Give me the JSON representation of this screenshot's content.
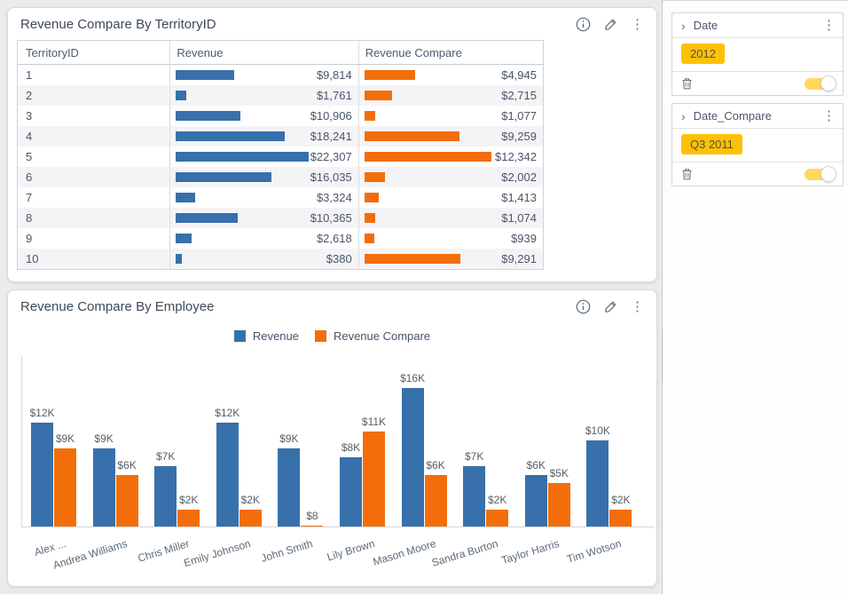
{
  "colors": {
    "revenue_blue": "#3770ab",
    "compare_orange": "#f36e0a",
    "chip_gold": "#ffc107",
    "toggle_on": "#ffd95c"
  },
  "icons": {
    "info": "info-circle",
    "edit": "pencil",
    "more": "vertical-ellipsis",
    "expander": "chevron-right",
    "delete": "trash-outline",
    "splitter": "chevron-right",
    "more_glyph": "⋮",
    "expander_glyph": "›",
    "splitter_glyph": "›"
  },
  "sidebar": {
    "filters": [
      {
        "title": "Date",
        "chip": "2012",
        "enabled": true
      },
      {
        "title": "Date_Compare",
        "chip": "Q3 2011",
        "enabled": true
      }
    ]
  },
  "chart_data": [
    {
      "type": "table",
      "title": "Revenue Compare By TerritoryID",
      "columns": [
        "TerritoryID",
        "Revenue",
        "Revenue Compare"
      ],
      "rows": [
        {
          "id": "1",
          "revenue": 9814,
          "revenue_label": "$9,814",
          "compare": 4945,
          "compare_label": "$4,945"
        },
        {
          "id": "2",
          "revenue": 1761,
          "revenue_label": "$1,761",
          "compare": 2715,
          "compare_label": "$2,715"
        },
        {
          "id": "3",
          "revenue": 10906,
          "revenue_label": "$10,906",
          "compare": 1077,
          "compare_label": "$1,077"
        },
        {
          "id": "4",
          "revenue": 18241,
          "revenue_label": "$18,241",
          "compare": 9259,
          "compare_label": "$9,259"
        },
        {
          "id": "5",
          "revenue": 22307,
          "revenue_label": "$22,307",
          "compare": 12342,
          "compare_label": "$12,342"
        },
        {
          "id": "6",
          "revenue": 16035,
          "revenue_label": "$16,035",
          "compare": 2002,
          "compare_label": "$2,002"
        },
        {
          "id": "7",
          "revenue": 3324,
          "revenue_label": "$3,324",
          "compare": 1413,
          "compare_label": "$1,413"
        },
        {
          "id": "8",
          "revenue": 10365,
          "revenue_label": "$10,365",
          "compare": 1074,
          "compare_label": "$1,074"
        },
        {
          "id": "9",
          "revenue": 2618,
          "revenue_label": "$2,618",
          "compare": 939,
          "compare_label": "$939"
        },
        {
          "id": "10",
          "revenue": 380,
          "revenue_label": "$380",
          "compare": 9291,
          "compare_label": "$9,291"
        }
      ]
    },
    {
      "type": "bar",
      "title": "Revenue Compare By Employee",
      "categories": [
        "Alex ...",
        "Andrea Williams",
        "Chris Miller",
        "Emily Johnson",
        "John Smith",
        "Lily Brown",
        "Mason Moore",
        "Sandra Burton",
        "Taylor Harris",
        "Tim Wotson"
      ],
      "series": [
        {
          "name": "Revenue",
          "color": "#3770ab",
          "values": [
            12000,
            9000,
            7000,
            12000,
            9000,
            8000,
            16000,
            7000,
            6000,
            10000
          ],
          "labels": [
            "$12K",
            "$9K",
            "$7K",
            "$12K",
            "$9K",
            "$8K",
            "$16K",
            "$7K",
            "$6K",
            "$10K"
          ]
        },
        {
          "name": "Revenue Compare",
          "color": "#f36e0a",
          "values": [
            9000,
            6000,
            2000,
            2000,
            8,
            11000,
            6000,
            2000,
            5000,
            2000
          ],
          "labels": [
            "$9K",
            "$6K",
            "$2K",
            "$2K",
            "$8",
            "$11K",
            "$6K",
            "$2K",
            "$5K",
            "$2K"
          ]
        }
      ],
      "xlabel": "",
      "ylabel": "",
      "ylim": [
        0,
        19800
      ],
      "grid": false,
      "legend_position": "top-center"
    }
  ]
}
